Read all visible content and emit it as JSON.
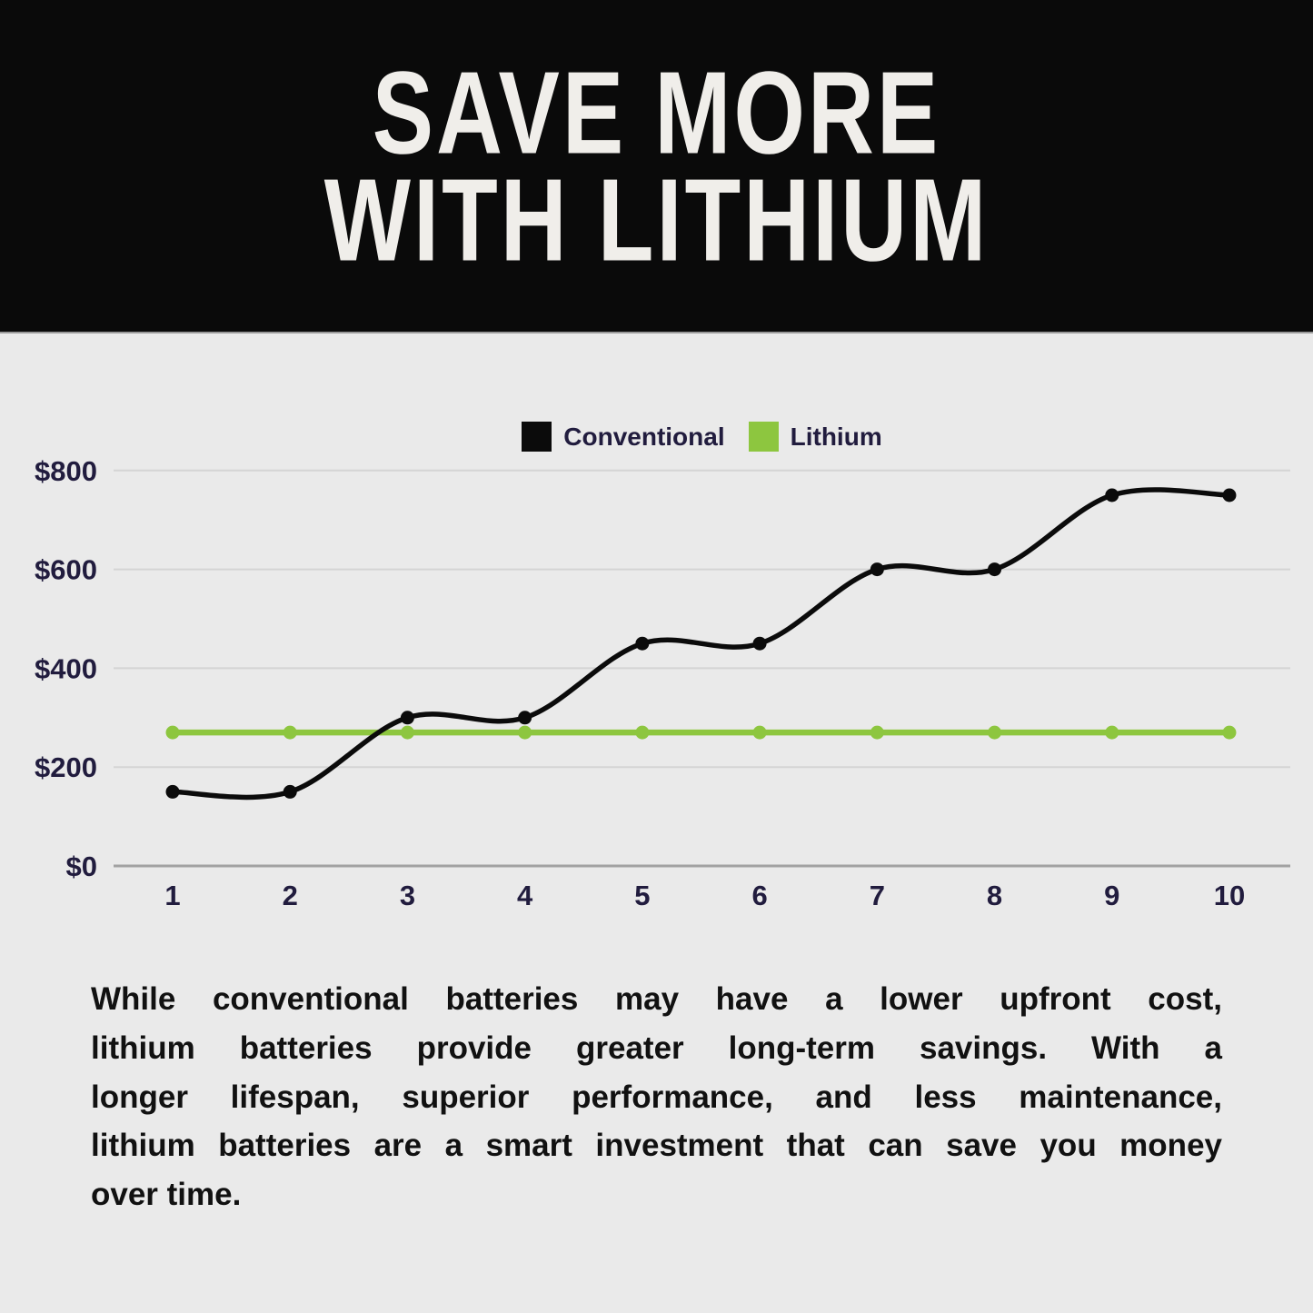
{
  "header": {
    "title_line1": "SAVE MORE",
    "title_line2": "WITH LITHIUM"
  },
  "chart_data": {
    "type": "line",
    "categories": [
      1,
      2,
      3,
      4,
      5,
      6,
      7,
      8,
      9,
      10
    ],
    "series": [
      {
        "name": "Conventional",
        "color": "#0b0b0b",
        "style": "smooth-curve",
        "markers": true,
        "values": [
          150,
          150,
          300,
          300,
          450,
          450,
          600,
          600,
          750,
          750
        ]
      },
      {
        "name": "Lithium",
        "color": "#8dc63f",
        "style": "straight",
        "markers": true,
        "values": [
          270,
          270,
          270,
          270,
          270,
          270,
          270,
          270,
          270,
          270
        ]
      }
    ],
    "y_ticks": [
      {
        "value": 0,
        "label": "$0"
      },
      {
        "value": 200,
        "label": "$200"
      },
      {
        "value": 400,
        "label": "$400"
      },
      {
        "value": 600,
        "label": "$600"
      },
      {
        "value": 800,
        "label": "$800"
      }
    ],
    "ylim": [
      0,
      800
    ],
    "grid": "horizontal-only",
    "legend_position": "top-center"
  },
  "description": {
    "lines": [
      "While conventional batteries may have a lower upfront cost,",
      "lithium batteries provide greater long-term savings. With a",
      "longer lifespan, superior performance, and less maintenance,",
      "lithium batteries are a smart investment that can save you money",
      "over time."
    ]
  },
  "colors": {
    "background": "#eaeaea",
    "header_bg": "#0a0a0a",
    "title_text": "#f0eeea",
    "grid_line": "#d4d4d4",
    "axis_line": "#a2a2a2",
    "axis_label": "#211c3e",
    "legend_label": "#211c3e",
    "body_text": "#111111",
    "conventional": "#0b0b0b",
    "lithium": "#8dc63f"
  }
}
